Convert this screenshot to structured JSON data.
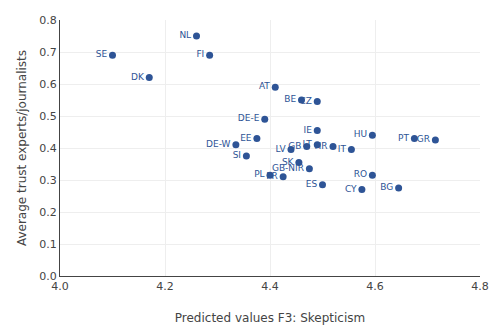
{
  "chart_data": {
    "type": "scatter",
    "xlabel": "Predicted values F3: Skepticism",
    "ylabel": "Average trust experts/journalists",
    "labels": [
      "SE",
      "DK",
      "NL",
      "FI",
      "DE-W",
      "EE",
      "SI",
      "DE-E",
      "PL",
      "AT",
      "FR",
      "LV",
      "SK",
      "BE",
      "GB",
      "GB-NIR",
      "CZ",
      "LT",
      "IE",
      "ES",
      "HR",
      "IT",
      "CY",
      "HU",
      "RO",
      "BG",
      "PT",
      "GR"
    ],
    "x": [
      4.1,
      4.17,
      4.26,
      4.285,
      4.335,
      4.375,
      4.355,
      4.39,
      4.4,
      4.41,
      4.425,
      4.44,
      4.455,
      4.46,
      4.47,
      4.475,
      4.49,
      4.49,
      4.49,
      4.5,
      4.52,
      4.555,
      4.575,
      4.595,
      4.595,
      4.645,
      4.675,
      4.715
    ],
    "values": [
      0.69,
      0.62,
      0.75,
      0.69,
      0.41,
      0.43,
      0.375,
      0.49,
      0.315,
      0.59,
      0.31,
      0.395,
      0.355,
      0.55,
      0.405,
      0.335,
      0.545,
      0.41,
      0.455,
      0.285,
      0.405,
      0.395,
      0.27,
      0.44,
      0.315,
      0.275,
      0.43,
      0.425
    ],
    "color": "#2E5496",
    "data_labels": true,
    "xlim": [
      4.0,
      4.8
    ],
    "ylim": [
      0.0,
      0.8
    ],
    "xticks": [
      {
        "value": 4.0,
        "label": "4.0"
      },
      4.2,
      4.4,
      4.6,
      4.8
    ],
    "yticks": [
      {
        "value": 0.0,
        "label": "0.0"
      },
      0.1,
      0.2,
      0.3,
      0.4,
      0.5,
      0.6,
      0.7,
      0.8
    ],
    "grid": true
  }
}
